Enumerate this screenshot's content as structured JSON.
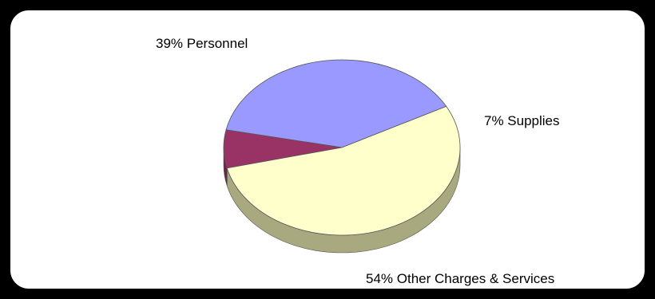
{
  "chart_data": {
    "type": "pie",
    "style": "3d",
    "title": "",
    "legend": "none",
    "slices": [
      {
        "label": "39% Personnel",
        "name": "Personnel",
        "value": 39,
        "color": "#9999ff",
        "side": "#6b6bb3"
      },
      {
        "label": "7% Supplies",
        "name": "Supplies",
        "value": 7,
        "color": "#993366",
        "side": "#6b2347"
      },
      {
        "label": "54% Other Charges & Services",
        "name": "Other Charges & Services",
        "value": 54,
        "color": "#ffffcc",
        "side": "#a9a97f"
      }
    ]
  }
}
